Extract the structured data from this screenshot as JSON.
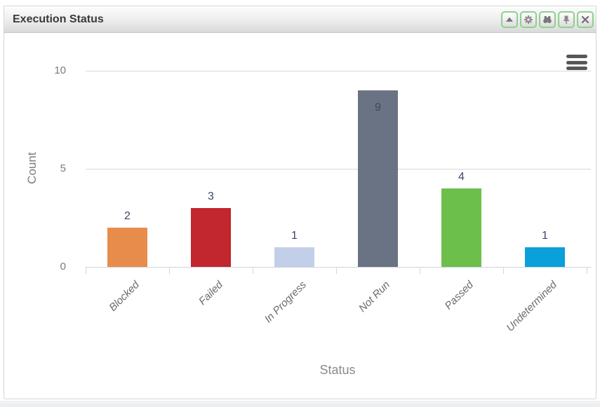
{
  "panel": {
    "title": "Execution Status",
    "toolbar": [
      {
        "name": "collapse",
        "icon": "chevron-up-icon"
      },
      {
        "name": "settings",
        "icon": "gear-icon"
      },
      {
        "name": "find",
        "icon": "binoculars-icon"
      },
      {
        "name": "pin",
        "icon": "pushpin-icon"
      },
      {
        "name": "close",
        "icon": "close-icon"
      }
    ],
    "border_accent_color": "#8ed08e"
  },
  "chart_data": {
    "type": "bar",
    "title": "",
    "categories": [
      "Blocked",
      "Failed",
      "In Progress",
      "Not Run",
      "Passed",
      "Undetermined"
    ],
    "values": [
      2,
      3,
      1,
      9,
      4,
      1
    ],
    "bar_colors": [
      "#e88c4c",
      "#c2262e",
      "#c3cfe8",
      "#6a7383",
      "#6cbf4a",
      "#0aa0da"
    ],
    "data_label_color": "#3a4664",
    "xlabel": "Status",
    "ylabel": "Count",
    "yticks": [
      0,
      5,
      10
    ],
    "ylim": [
      0,
      10
    ],
    "grid": true,
    "legend": "none",
    "x_labels_rotated_degrees": -45,
    "context_menu_icon": "hamburger-menu-icon"
  }
}
